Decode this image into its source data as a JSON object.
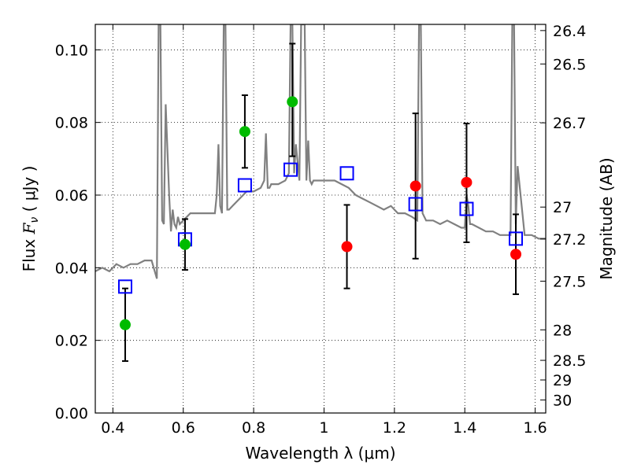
{
  "chart_data": {
    "type": "scatter",
    "xlabel": "Wavelength  λ (μm)",
    "ylabel": "Flux  F_ν  ( μJy )",
    "ylabel_parts": {
      "pre": "Flux  ",
      "sym": "F",
      "sub": "ν",
      "post": "  ( μJy )"
    },
    "ylabel_right": "Magnitude (AB)",
    "xlim": [
      0.35,
      1.63
    ],
    "ylim": [
      0.0,
      0.107
    ],
    "x_ticks": [
      {
        "value": 0.4,
        "label": "0.4"
      },
      {
        "value": 0.6,
        "label": "0.6"
      },
      {
        "value": 0.8,
        "label": "0.8"
      },
      {
        "value": 1.0,
        "label": "1"
      },
      {
        "value": 1.2,
        "label": "1.2"
      },
      {
        "value": 1.4,
        "label": "1.4"
      },
      {
        "value": 1.6,
        "label": "1.6"
      }
    ],
    "y_ticks": [
      {
        "value": 0.0,
        "label": "0.00"
      },
      {
        "value": 0.02,
        "label": "0.02"
      },
      {
        "value": 0.04,
        "label": "0.04"
      },
      {
        "value": 0.06,
        "label": "0.06"
      },
      {
        "value": 0.08,
        "label": "0.08"
      },
      {
        "value": 0.1,
        "label": "0.10"
      }
    ],
    "right_ticks": [
      {
        "flux": 0.1053,
        "label": "26.4"
      },
      {
        "flux": 0.0961,
        "label": "26.5"
      },
      {
        "flux": 0.0799,
        "label": "26.7"
      },
      {
        "flux": 0.0567,
        "label": "27"
      },
      {
        "flux": 0.0479,
        "label": "27.2"
      },
      {
        "flux": 0.0363,
        "label": "27.5"
      },
      {
        "flux": 0.0229,
        "label": "28"
      },
      {
        "flux": 0.0145,
        "label": "28.5"
      },
      {
        "flux": 0.0091,
        "label": "29"
      },
      {
        "flux": 0.0036,
        "label": "30"
      }
    ],
    "grid": true,
    "colors": {
      "spectrum": "#808080",
      "model_box": "#0000ff",
      "green_point": "#00bb00",
      "red_point": "#ff0000",
      "errorbar": "#000000"
    },
    "series": [
      {
        "kind": "model_spectrum",
        "x": [
          0.35,
          0.37,
          0.39,
          0.41,
          0.43,
          0.45,
          0.47,
          0.49,
          0.51,
          0.525,
          0.53,
          0.535,
          0.54,
          0.545,
          0.55,
          0.56,
          0.565,
          0.57,
          0.575,
          0.58,
          0.585,
          0.59,
          0.6,
          0.62,
          0.64,
          0.66,
          0.68,
          0.69,
          0.695,
          0.7,
          0.705,
          0.71,
          0.715,
          0.72,
          0.725,
          0.73,
          0.74,
          0.76,
          0.78,
          0.8,
          0.82,
          0.83,
          0.835,
          0.84,
          0.845,
          0.85,
          0.87,
          0.89,
          0.9,
          0.905,
          0.91,
          0.915,
          0.92,
          0.93,
          0.935,
          0.94,
          0.945,
          0.95,
          0.955,
          0.96,
          0.965,
          0.97,
          0.99,
          1.01,
          1.03,
          1.05,
          1.07,
          1.09,
          1.11,
          1.13,
          1.15,
          1.17,
          1.19,
          1.21,
          1.23,
          1.25,
          1.265,
          1.27,
          1.275,
          1.28,
          1.29,
          1.31,
          1.33,
          1.35,
          1.37,
          1.39,
          1.4,
          1.405,
          1.41,
          1.415,
          1.42,
          1.44,
          1.46,
          1.48,
          1.5,
          1.52,
          1.53,
          1.535,
          1.54,
          1.545,
          1.55,
          1.57,
          1.59,
          1.61,
          1.63
        ],
        "y": [
          0.039,
          0.04,
          0.039,
          0.041,
          0.04,
          0.041,
          0.041,
          0.042,
          0.042,
          0.037,
          0.107,
          0.107,
          0.053,
          0.052,
          0.085,
          0.06,
          0.05,
          0.056,
          0.052,
          0.051,
          0.054,
          0.052,
          0.053,
          0.055,
          0.055,
          0.055,
          0.055,
          0.055,
          0.06,
          0.074,
          0.057,
          0.055,
          0.107,
          0.107,
          0.056,
          0.056,
          0.057,
          0.059,
          0.061,
          0.061,
          0.062,
          0.064,
          0.077,
          0.062,
          0.062,
          0.063,
          0.063,
          0.064,
          0.066,
          0.107,
          0.107,
          0.066,
          0.074,
          0.064,
          0.107,
          0.107,
          0.107,
          0.064,
          0.075,
          0.064,
          0.063,
          0.064,
          0.064,
          0.064,
          0.064,
          0.063,
          0.062,
          0.06,
          0.059,
          0.058,
          0.057,
          0.056,
          0.057,
          0.055,
          0.055,
          0.054,
          0.053,
          0.107,
          0.107,
          0.055,
          0.053,
          0.053,
          0.052,
          0.053,
          0.052,
          0.051,
          0.051,
          0.06,
          0.057,
          0.052,
          0.052,
          0.051,
          0.05,
          0.05,
          0.049,
          0.049,
          0.049,
          0.107,
          0.107,
          0.052,
          0.068,
          0.049,
          0.049,
          0.048,
          0.048
        ]
      },
      {
        "kind": "model_photometry_boxes",
        "x": [
          0.435,
          0.605,
          0.775,
          0.905,
          1.065,
          1.26,
          1.405,
          1.545
        ],
        "y": [
          0.0348,
          0.0478,
          0.0627,
          0.067,
          0.066,
          0.0575,
          0.0562,
          0.048
        ]
      },
      {
        "kind": "observed_detections_green",
        "x": [
          0.435,
          0.605,
          0.775,
          0.91
        ],
        "y": [
          0.0243,
          0.0464,
          0.0775,
          0.0857
        ],
        "err_low": [
          0.0143,
          0.0394,
          0.0675,
          0.0707
        ],
        "err_high": [
          0.0343,
          0.0534,
          0.0875,
          0.1017
        ]
      },
      {
        "kind": "observed_detections_red",
        "x": [
          1.065,
          1.26,
          1.405,
          1.545
        ],
        "y": [
          0.0458,
          0.0625,
          0.0635,
          0.0437
        ],
        "err_low": [
          0.0343,
          0.0425,
          0.047,
          0.0327
        ],
        "err_high": [
          0.0573,
          0.0825,
          0.0797,
          0.0547
        ]
      }
    ]
  }
}
